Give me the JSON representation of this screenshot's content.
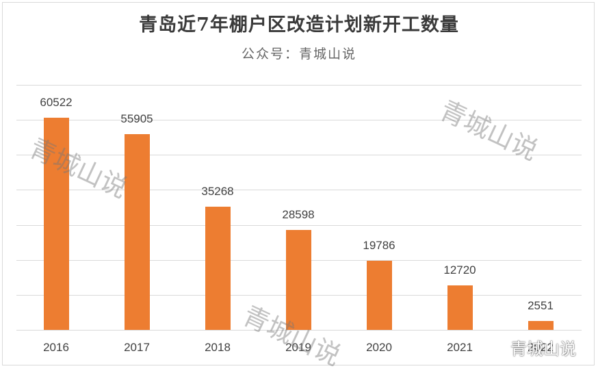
{
  "chart_data": {
    "type": "bar",
    "title": "青岛近7年棚户区改造计划新开工数量",
    "subtitle": "公众号：青城山说",
    "categories": [
      "2016",
      "2017",
      "2018",
      "2019",
      "2020",
      "2021",
      "2022"
    ],
    "values": [
      60522,
      55905,
      35268,
      28598,
      19786,
      12720,
      2551
    ],
    "value_labels": [
      "60522",
      "55905",
      "35268",
      "28598",
      "19786",
      "12720",
      "2551"
    ],
    "xlabel": "",
    "ylabel": "",
    "ylim": [
      0,
      70000
    ],
    "grid": true,
    "gridline_step": 10000,
    "legend": "none",
    "bar_color": "#ed7d31"
  },
  "watermarks": [
    "青城山说",
    "青城山说",
    "青城山说"
  ],
  "corner_watermark": "青城山说"
}
